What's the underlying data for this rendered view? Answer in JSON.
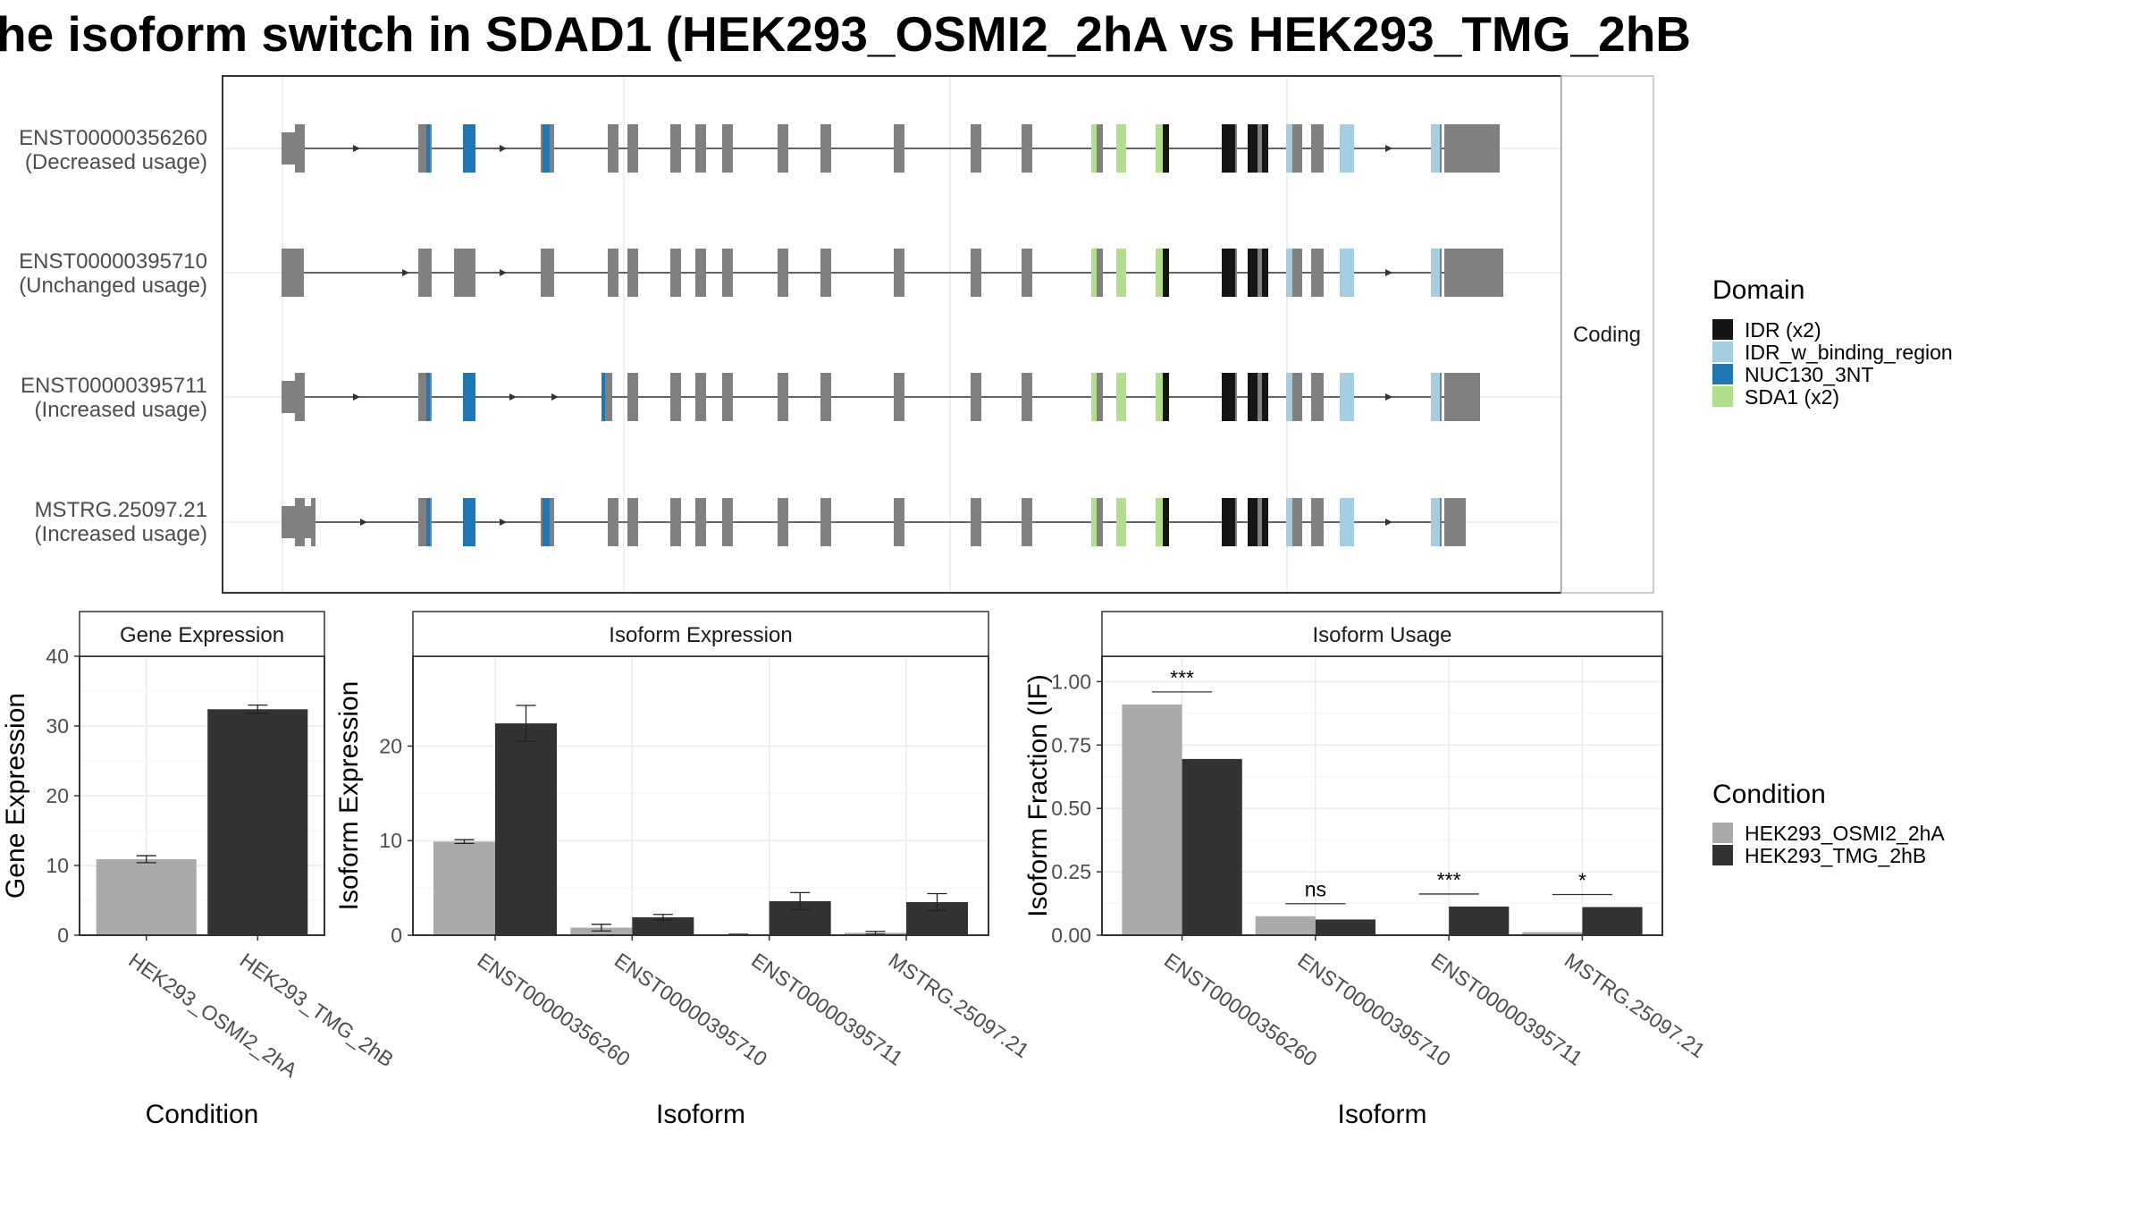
{
  "title": "he isoform switch in SDAD1 (HEK293_OSMI2_2hA vs HEK293_TMG_2hB",
  "colors": {
    "domain_IDR": "#151515",
    "domain_IDR_w_binding_region": "#a6cee3",
    "domain_NUC130_3NT": "#1f78b4",
    "domain_SDA1": "#b2df8a",
    "exon": "#808080",
    "condition_A": "#aaaaaa",
    "condition_B": "#333333"
  },
  "structure": {
    "strip_label": "Coding",
    "transcripts": [
      {
        "line1": "ENST00000356260",
        "line2": "(Decreased usage)"
      },
      {
        "line1": "ENST00000395710",
        "line2": "(Unchanged usage)"
      },
      {
        "line1": "ENST00000395711",
        "line2": "(Increased usage)"
      },
      {
        "line1": "MSTRG.25097.21",
        "line2": "(Increased usage)"
      }
    ]
  },
  "legend_domain": {
    "title": "Domain",
    "items": [
      "IDR (x2)",
      "IDR_w_binding_region",
      "NUC130_3NT",
      "SDA1 (x2)"
    ]
  },
  "legend_condition": {
    "title": "Condition",
    "items": [
      "HEK293_OSMI2_2hA",
      "HEK293_TMG_2hB"
    ]
  },
  "chart_data": [
    {
      "type": "bar",
      "title": "Gene Expression",
      "xlabel": "Condition",
      "ylabel": "Gene Expression",
      "categories": [
        "HEK293_OSMI2_2hA",
        "HEK293_TMG_2hB"
      ],
      "values": [
        10.9,
        32.4
      ],
      "errors": [
        0.5,
        0.6
      ],
      "ylim": [
        0,
        40
      ],
      "yticks": [
        "0",
        "10",
        "20",
        "30",
        "40"
      ],
      "grid": true
    },
    {
      "type": "bar",
      "title": "Isoform Expression",
      "xlabel": "Isoform",
      "ylabel": "Isoform Expression",
      "categories": [
        "ENST00000356260",
        "ENST00000395710",
        "ENST00000395711",
        "MSTRG.25097.21"
      ],
      "series": [
        {
          "values": [
            9.9,
            0.8,
            0.05,
            0.25
          ],
          "errors": [
            0.2,
            0.35,
            0.05,
            0.15
          ]
        },
        {
          "values": [
            22.4,
            1.9,
            3.6,
            3.5
          ],
          "errors": [
            1.9,
            0.3,
            0.9,
            0.9
          ]
        }
      ],
      "ylim": [
        0,
        29.5
      ],
      "yticks": [
        "0",
        "10",
        "20"
      ],
      "grid": true
    },
    {
      "type": "bar",
      "title": "Isoform Usage",
      "xlabel": "Isoform",
      "ylabel": "Isoform Fraction (IF)",
      "categories": [
        "ENST00000356260",
        "ENST00000395710",
        "ENST00000395711",
        "MSTRG.25097.21"
      ],
      "series": [
        {
          "values": [
            0.91,
            0.075,
            0.002,
            0.012
          ]
        },
        {
          "values": [
            0.695,
            0.062,
            0.113,
            0.111
          ]
        }
      ],
      "significance": [
        "***",
        "ns",
        "***",
        "*"
      ],
      "ylim": [
        0,
        1.1
      ],
      "yticks": [
        "0.00",
        "0.25",
        "0.50",
        "0.75",
        "1.00"
      ],
      "grid": true
    }
  ]
}
